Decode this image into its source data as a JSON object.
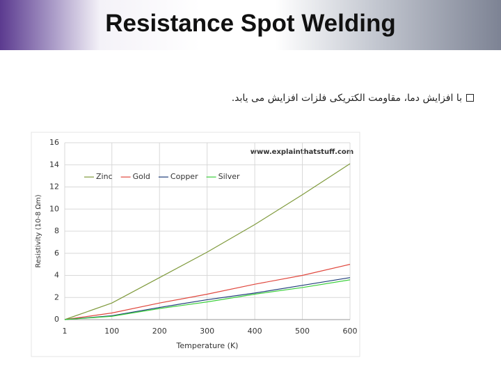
{
  "slide": {
    "title": "Resistance Spot Welding",
    "bullet": "با افزایش دما، مقاومت الکتریکی فلزات افزایش می یابد."
  },
  "chart_data": {
    "type": "line",
    "annotation": "www.explainthatstuff.com",
    "x_label": "Temperature (K)",
    "y_label": "Resistivity (10-8 Ωm)",
    "x": [
      1,
      100,
      200,
      300,
      400,
      500,
      600
    ],
    "series": [
      {
        "name": "Zinc",
        "color": "#7f9a3c",
        "values": [
          0,
          1.5,
          3.8,
          6.1,
          8.6,
          11.3,
          14.1
        ]
      },
      {
        "name": "Gold",
        "color": "#e0473d",
        "values": [
          0,
          0.6,
          1.5,
          2.3,
          3.2,
          4.0,
          5.0
        ]
      },
      {
        "name": "Copper",
        "color": "#1f3d7a",
        "values": [
          0,
          0.35,
          1.1,
          1.8,
          2.4,
          3.1,
          3.8
        ]
      },
      {
        "name": "Silver",
        "color": "#3ccf3c",
        "values": [
          0,
          0.3,
          1.0,
          1.6,
          2.3,
          2.9,
          3.6
        ]
      }
    ],
    "xlim": [
      1,
      600
    ],
    "xticks": [
      1,
      100,
      200,
      300,
      400,
      500,
      600
    ],
    "ylim": [
      0,
      16
    ],
    "yticks": [
      0,
      2,
      4,
      6,
      8,
      10,
      12,
      14,
      16
    ],
    "grid": true,
    "legend": "top-left"
  }
}
